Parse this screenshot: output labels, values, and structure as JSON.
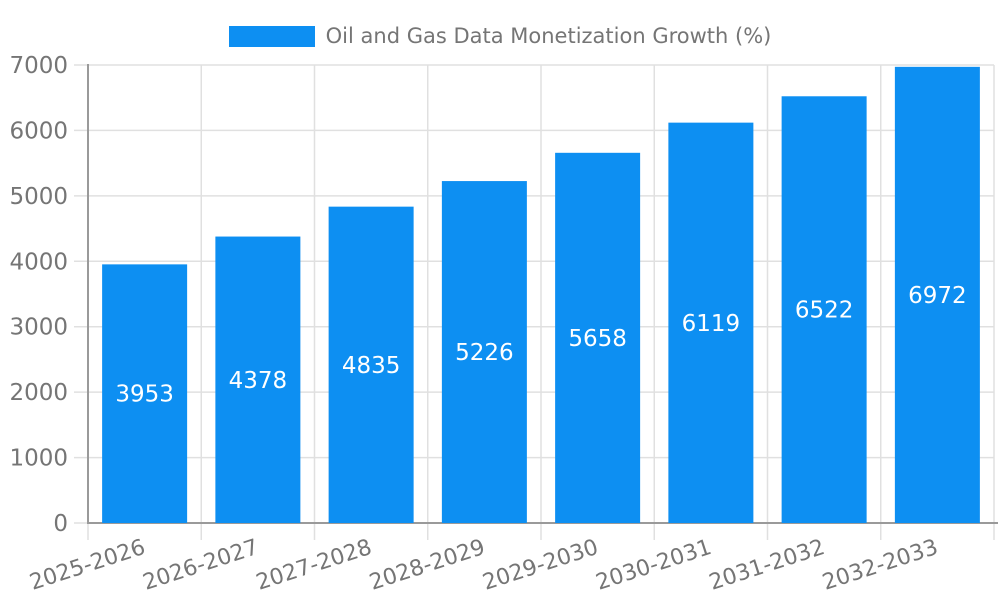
{
  "chart_data": {
    "type": "bar",
    "title": "Oil and Gas Data Monetization Growth (%)",
    "legend": [
      {
        "label": "Oil and Gas Data Monetization Growth (%)"
      }
    ],
    "legend_position": "top-center",
    "categories": [
      "2025-2026",
      "2026-2027",
      "2027-2028",
      "2028-2029",
      "2029-2030",
      "2030-2031",
      "2031-2032",
      "2032-2033"
    ],
    "values": [
      3953,
      4378,
      4835,
      5226,
      5658,
      6119,
      6522,
      6972
    ],
    "bar_value_labels": [
      "3953",
      "4378",
      "4835",
      "5226",
      "5658",
      "6119",
      "6522",
      "6972"
    ],
    "xlabel": "",
    "ylabel": "",
    "ylim": [
      0,
      7000
    ],
    "yticks": [
      0,
      1000,
      2000,
      3000,
      4000,
      5000,
      6000,
      7000
    ],
    "ytick_labels": [
      "0",
      "1000",
      "2000",
      "3000",
      "4000",
      "5000",
      "6000",
      "7000"
    ],
    "grid": true,
    "x_tick_rotation_deg": -18
  },
  "style": {
    "bar_color": "#0d8ff2",
    "bar_label_color": "#ffffff",
    "grid_color": "#e0e0e0",
    "axis_color": "#9a9a9a",
    "tick_text_color": "#757575",
    "background": "#ffffff"
  }
}
